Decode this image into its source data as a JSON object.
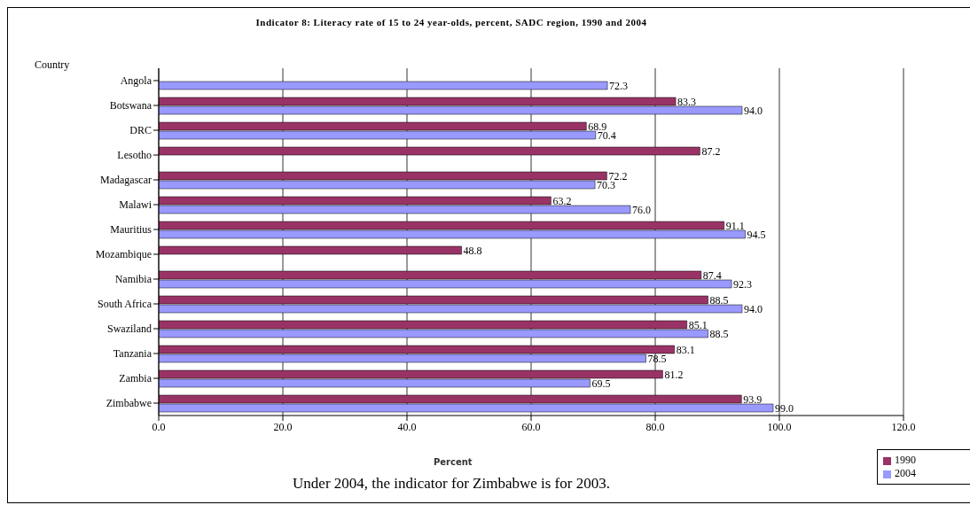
{
  "chart_data": {
    "type": "bar",
    "orientation": "horizontal",
    "title": "Indicator 8: Literacy rate of 15 to 24 year-olds, percent, SADC region, 1990 and 2004",
    "ylabel": "Country",
    "xlabel": "Percent",
    "annotations": [
      "Under 2004, the indicator for Zimbabwe is for 2003."
    ],
    "categories": [
      "Angola",
      "Botswana",
      "DRC",
      "Lesotho",
      "Madagascar",
      "Malawi",
      "Mauritius",
      "Mozambique",
      "Namibia",
      "South Africa",
      "Swaziland",
      "Tanzania",
      "Zambia",
      "Zimbabwe"
    ],
    "series": [
      {
        "name": "1990",
        "color": "#993366",
        "values": [
          null,
          83.3,
          68.9,
          87.2,
          72.2,
          63.2,
          91.1,
          48.8,
          87.4,
          88.5,
          85.1,
          83.1,
          81.2,
          93.9
        ],
        "value_labels": [
          null,
          "83.3",
          "68.9",
          "87.2",
          "72.2",
          "63.2",
          "91.1",
          "48.8",
          "87.4",
          "88.5",
          "85.1",
          "83.1",
          "81.2",
          "93.9"
        ]
      },
      {
        "name": "2004",
        "color": "#9999ff",
        "values": [
          72.3,
          94.0,
          70.4,
          null,
          70.3,
          76.0,
          94.5,
          null,
          92.3,
          94.0,
          88.5,
          78.5,
          69.5,
          99.0
        ],
        "value_labels": [
          "72.3",
          "94.0",
          "70.4",
          null,
          "70.3",
          "76.0",
          "94.5",
          null,
          "92.3",
          "94.0",
          "88.5",
          "78.5",
          "69.5",
          "99.0"
        ]
      }
    ],
    "xlim": [
      0,
      120
    ],
    "xticks": [
      {
        "value": 0,
        "label": "0.0"
      },
      {
        "value": 20,
        "label": "20.0"
      },
      {
        "value": 40,
        "label": "40.0"
      },
      {
        "value": 60,
        "label": "60.0"
      },
      {
        "value": 80,
        "label": "80.0"
      },
      {
        "value": 100,
        "label": "100.0"
      },
      {
        "value": 120,
        "label": "120.0"
      }
    ],
    "grid": "x",
    "legend": "bottom right"
  }
}
